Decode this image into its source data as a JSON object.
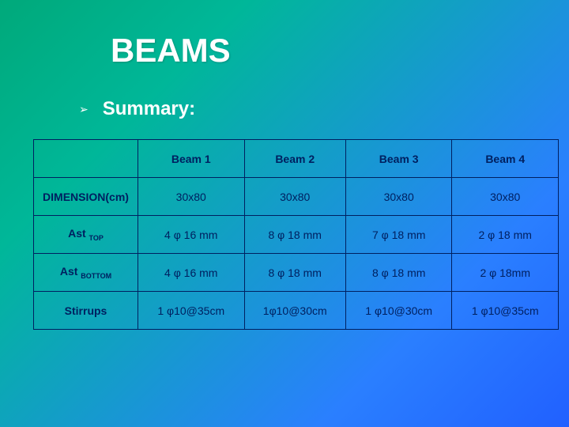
{
  "title": "BEAMS",
  "subtitle": "Summary:",
  "table": {
    "columns": [
      "Beam 1",
      "Beam 2",
      "Beam 3",
      "Beam 4"
    ],
    "row_labels": {
      "dimension": "DIMENSION(cm)",
      "ast_top_prefix": "Ast ",
      "ast_top_sub": "TOP",
      "ast_bottom_prefix": "Ast ",
      "ast_bottom_sub": "BOTTOM",
      "stirrups": "Stirrups"
    },
    "rows": {
      "dimension": [
        "30x80",
        "30x80",
        "30x80",
        "30x80"
      ],
      "ast_top": [
        "4 φ 16  mm",
        "8 φ 18 mm",
        "7 φ 18 mm",
        "2 φ 18 mm"
      ],
      "ast_bottom": [
        "4 φ 16  mm",
        "8 φ 18 mm",
        "8 φ 18 mm",
        "2 φ 18mm"
      ],
      "stirrups": [
        "1 φ10@35cm",
        "1φ10@30cm",
        "1 φ10@30cm",
        "1 φ10@35cm"
      ]
    },
    "border_color": "#002060",
    "text_color": "#002060",
    "header_fontweight": "bold"
  },
  "colors": {
    "title_color": "#ffffff",
    "subtitle_color": "#ffffff",
    "bg_gradient_start": "#00a97a",
    "bg_gradient_end": "#2160ff"
  },
  "typography": {
    "title_fontsize": 42,
    "subtitle_fontsize": 24,
    "cell_fontsize": 14,
    "font_family": "Verdana"
  }
}
